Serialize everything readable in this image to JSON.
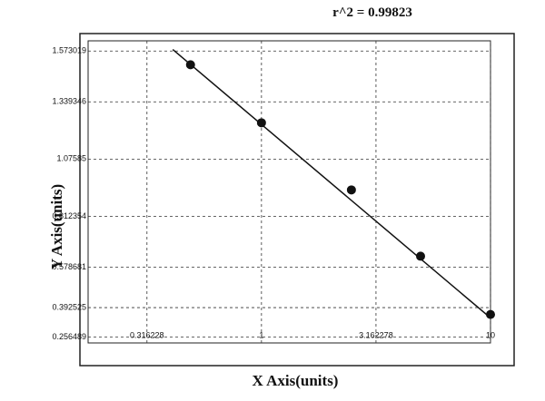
{
  "chart_data": {
    "type": "scatter",
    "title": "r^2  =  0.99823",
    "x_label": "X Axis(units)",
    "y_label": "Y Axis(units)",
    "x": [
      0.49,
      1,
      2.47,
      4.95,
      10
    ],
    "values": [
      1.51,
      1.243,
      0.934,
      0.629,
      0.361
    ],
    "color": "#111111",
    "fit": {
      "x": [
        0.41,
        10.4
      ],
      "values": [
        1.58,
        0.33
      ],
      "color": "#111111"
    },
    "xscale": "log",
    "xlim": [
      0.175,
      10
    ],
    "ylim": [
      0.23,
      1.62
    ],
    "xticks": [
      0.316228,
      1,
      3.162278,
      10
    ],
    "yticks": [
      0.256489,
      0.392525,
      0.578681,
      0.812354,
      1.07585,
      1.339346,
      1.573019
    ],
    "grid": true
  }
}
